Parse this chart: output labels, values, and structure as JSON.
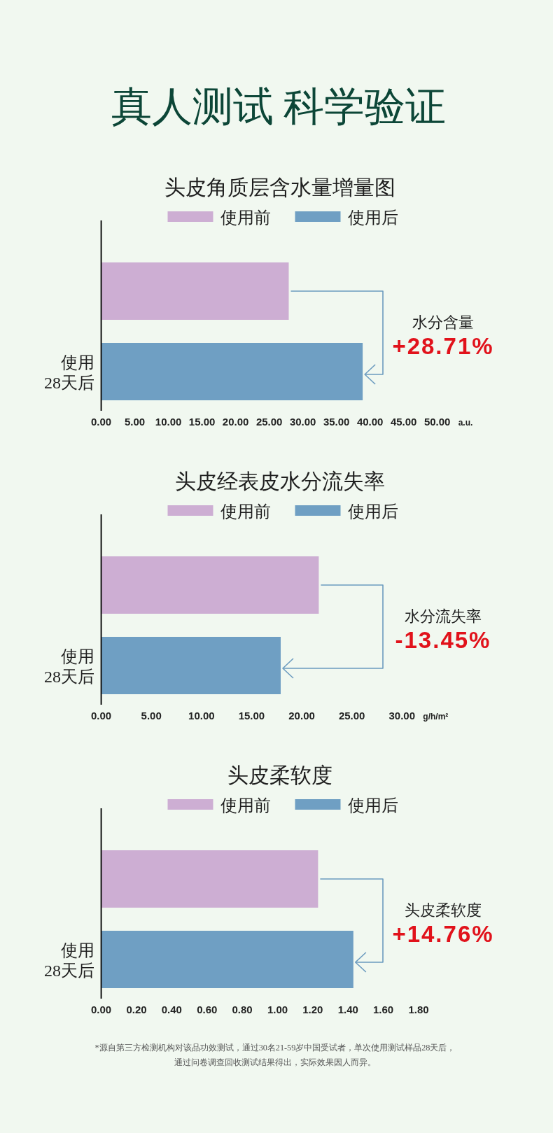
{
  "chart_data": [
    {
      "type": "other",
      "title": "真人测试 科学验证"
    },
    {
      "type": "bar",
      "orientation": "horizontal",
      "title": "头皮角质层含水量增量图",
      "categories": [
        null,
        "使用28天后"
      ],
      "series": [
        {
          "name": "使用前",
          "color": "#cdaed3",
          "values": [
            27.9,
            null
          ]
        },
        {
          "name": "使用后",
          "color": "#6f9fc3",
          "values": [
            null,
            38.9
          ]
        }
      ],
      "xlim": [
        0,
        50
      ],
      "xticks": [
        {
          "value": 0,
          "label": "0.00"
        },
        {
          "value": 5,
          "label": "5.00"
        },
        {
          "value": 10,
          "label": "10.00"
        },
        {
          "value": 15,
          "label": "15.00"
        },
        {
          "value": 20,
          "label": "20.00"
        },
        {
          "value": 25,
          "label": "25.00"
        },
        {
          "value": 30,
          "label": "30.00"
        },
        {
          "value": 35,
          "label": "35.00"
        },
        {
          "value": 40,
          "label": "40.00"
        },
        {
          "value": 45,
          "label": "45.00"
        },
        {
          "value": 50,
          "label": "50.00"
        }
      ],
      "xlabel": "a.u.",
      "legend": "top",
      "annotations": [
        "水分含量",
        "+28.71%"
      ]
    },
    {
      "type": "bar",
      "orientation": "horizontal",
      "title": "头皮经表皮水分流失率",
      "categories": [
        null,
        "使用28天后"
      ],
      "series": [
        {
          "name": "使用前",
          "color": "#cdaed3",
          "values": [
            21.7,
            null
          ]
        },
        {
          "name": "使用后",
          "color": "#6f9fc3",
          "values": [
            null,
            17.9
          ]
        }
      ],
      "xlim": [
        0,
        30
      ],
      "xticks": [
        {
          "value": 0,
          "label": "0.00"
        },
        {
          "value": 5,
          "label": "5.00"
        },
        {
          "value": 10,
          "label": "10.00"
        },
        {
          "value": 15,
          "label": "15.00"
        },
        {
          "value": 20,
          "label": "20.00"
        },
        {
          "value": 25,
          "label": "25.00"
        },
        {
          "value": 30,
          "label": "30.00"
        }
      ],
      "xlabel": "g/h/m²",
      "legend": "top",
      "annotations": [
        "水分流失率",
        "-13.45%"
      ]
    },
    {
      "type": "bar",
      "orientation": "horizontal",
      "title": "头皮柔软度",
      "categories": [
        null,
        "使用28天后"
      ],
      "series": [
        {
          "name": "使用前",
          "color": "#cdaed3",
          "values": [
            1.23,
            null
          ]
        },
        {
          "name": "使用后",
          "color": "#6f9fc3",
          "values": [
            null,
            1.43
          ]
        }
      ],
      "xlim": [
        0,
        1.8
      ],
      "xticks": [
        {
          "value": 0,
          "label": "0.00"
        },
        {
          "value": 0.2,
          "label": "0.20"
        },
        {
          "value": 0.4,
          "label": "0.40"
        },
        {
          "value": 0.6,
          "label": "0.60"
        },
        {
          "value": 0.8,
          "label": "0.80"
        },
        {
          "value": 1,
          "label": "1.00"
        },
        {
          "value": 1.2,
          "label": "1.20"
        },
        {
          "value": 1.4,
          "label": "1.40"
        },
        {
          "value": 1.6,
          "label": "1.60"
        },
        {
          "value": 1.8,
          "label": "1.80"
        }
      ],
      "legend": "top",
      "annotations": [
        "头皮柔软度",
        "+14.76%"
      ]
    },
    {
      "type": "other",
      "annotations": [
        "*源自第三方检测机构对该品功效测试，通过30名21-59岁中国受试者，单次使用测试样品28天后，通过问卷调查回收测试结果得出，实际效果因人而异。"
      ]
    }
  ]
}
